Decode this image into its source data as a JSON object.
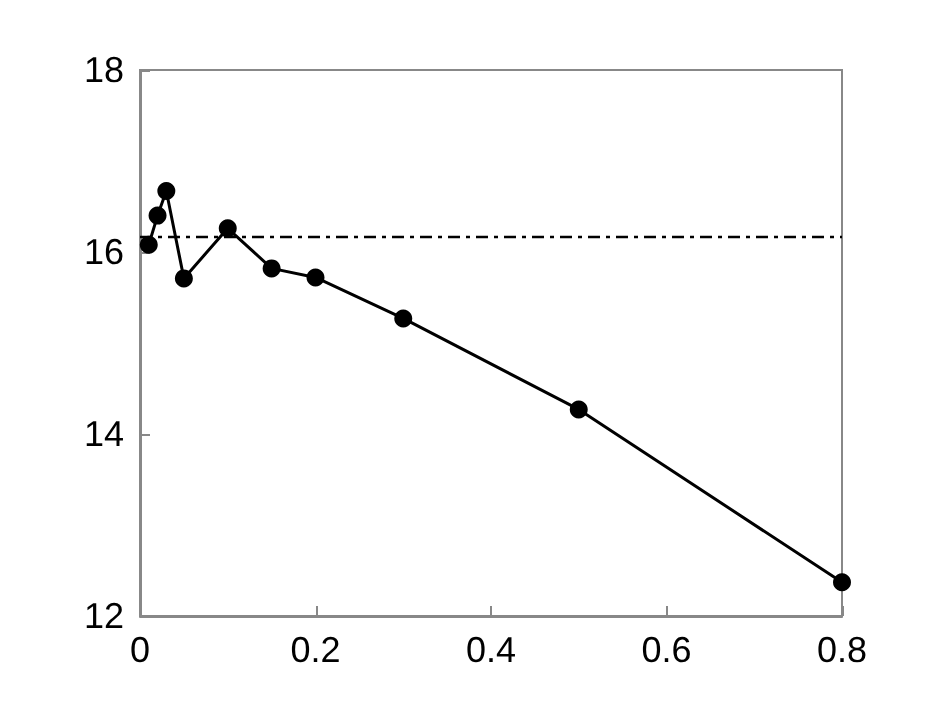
{
  "chart_data": {
    "type": "line",
    "x": [
      0.01,
      0.02,
      0.03,
      0.05,
      0.1,
      0.15,
      0.2,
      0.3,
      0.5,
      0.8
    ],
    "series": [
      {
        "color": "#000000",
        "values": [
          16.08,
          16.4,
          16.67,
          15.71,
          16.26,
          15.82,
          15.72,
          15.27,
          14.27,
          12.37
        ]
      }
    ],
    "xlim": [
      0,
      0.8
    ],
    "xticks": [
      0,
      0.2,
      0.4,
      0.6,
      0.8
    ],
    "ylim": [
      12,
      18
    ],
    "yticks": [
      12,
      14,
      16,
      18
    ],
    "ref_lines": [
      {
        "axis": "y",
        "value": 16.17,
        "color": "#000000",
        "line_style": "dashed"
      }
    ],
    "marker": "circle",
    "line_style": "solid",
    "grid": false
  }
}
